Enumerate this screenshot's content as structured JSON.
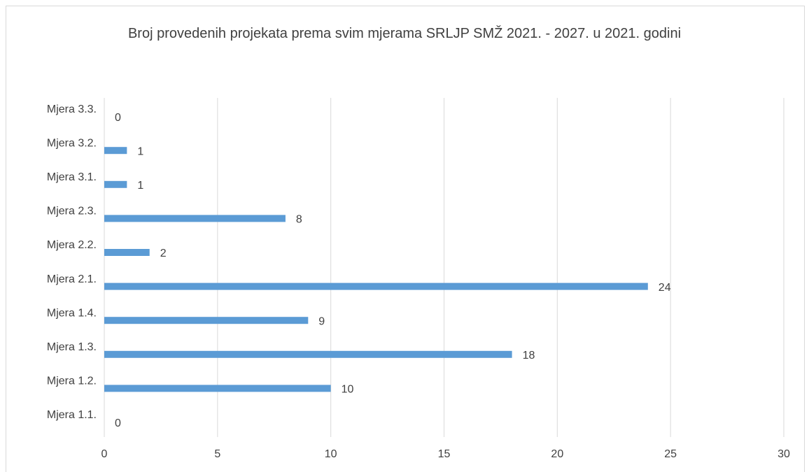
{
  "chart_data": {
    "type": "hbar",
    "title": "Broj provedenih projekata prema svim mjerama SRLJP SMŽ 2021. - 2027. u 2021. godini",
    "categories": [
      "Mjera 1.1.",
      "Mjera 1.2.",
      "Mjera 1.3.",
      "Mjera 1.4.",
      "Mjera 2.1.",
      "Mjera 2.2.",
      "Mjera 2.3.",
      "Mjera 3.1.",
      "Mjera 3.2.",
      "Mjera 3.3."
    ],
    "values": [
      0,
      10,
      18,
      9,
      24,
      2,
      8,
      1,
      1,
      0
    ],
    "color": "#5b9bd5",
    "xlim": [
      0,
      30
    ],
    "xticks": [
      0,
      5,
      10,
      15,
      20,
      25,
      30
    ],
    "grid": true
  }
}
